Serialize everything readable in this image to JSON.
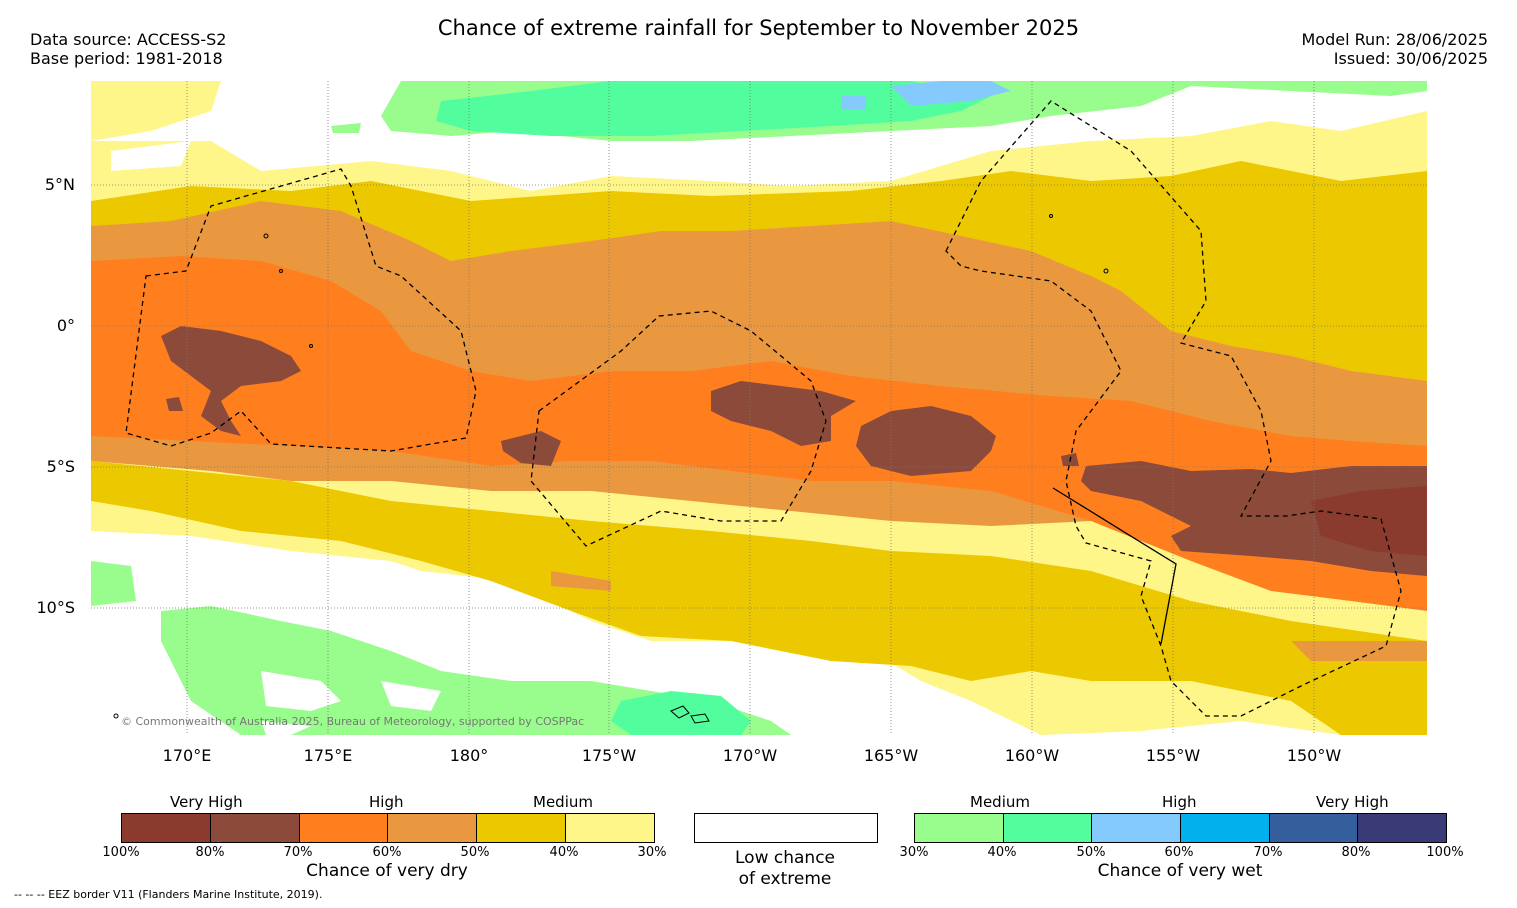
{
  "header": {
    "title": "Chance of extreme rainfall for September to November 2025",
    "data_source": "Data source: ACCESS-S2",
    "base_period": "Base period: 1981-2018",
    "model_run": "Model Run: 28/06/2025",
    "issued": "Issued: 30/06/2025"
  },
  "map": {
    "lat_labels": [
      "5°N",
      "0°",
      "5°S",
      "10°S"
    ],
    "lon_labels": [
      "170°E",
      "175°E",
      "180°",
      "175°W",
      "170°W",
      "165°W",
      "160°W",
      "155°W",
      "150°W"
    ],
    "copyright": "© Commonwealth of Australia 2025, Bureau of Meteorology, supported by COSPPac"
  },
  "legend_dry": {
    "levels": [
      "Very High",
      "High",
      "Medium"
    ],
    "ticks": [
      "100%",
      "80%",
      "70%",
      "60%",
      "50%",
      "40%",
      "30%"
    ],
    "label": "Chance of very dry",
    "colors": [
      "#8b3a2e",
      "#8b4a3a",
      "#ff7f1f",
      "#ea9840",
      "#ecc800",
      "#fff68a"
    ]
  },
  "legend_low": {
    "label_line1": "Low chance",
    "label_line2": "of extreme",
    "color": "#ffffff"
  },
  "legend_wet": {
    "levels": [
      "Medium",
      "High",
      "Very High"
    ],
    "ticks": [
      "30%",
      "40%",
      "50%",
      "60%",
      "70%",
      "80%",
      "100%"
    ],
    "label": "Chance of very wet",
    "colors": [
      "#99fd8d",
      "#52fd9e",
      "#85cafd",
      "#01b0ec",
      "#355e9d",
      "#3a3a77"
    ]
  },
  "footer": {
    "eez_note": "-- -- -- EEZ border V11 (Flanders Marine Institute, 2019)."
  }
}
